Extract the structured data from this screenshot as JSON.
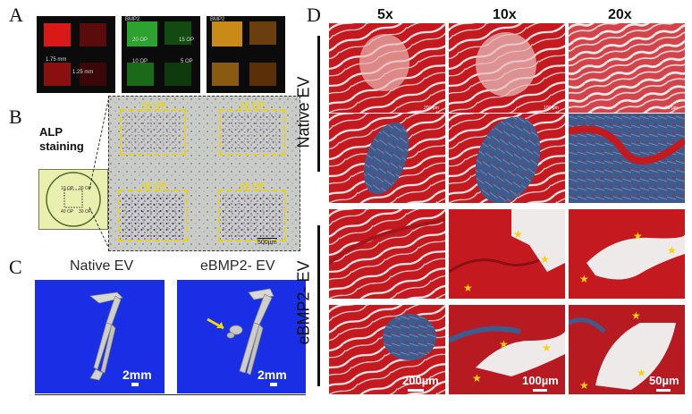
{
  "panels": {
    "a": {
      "letter": "A",
      "bmp2_1": "BMP2",
      "bmp2_2": "BMP2",
      "op20": "20 OP",
      "op15": "15 OP",
      "op10": "10 OP",
      "op5": "5 OP",
      "dim1": "1.75 mm",
      "dim2": "1.25 mm"
    },
    "b": {
      "letter": "B",
      "alp_line1": "ALP",
      "alp_line2": "staining",
      "op10": "10 OP",
      "op20": "20 OP",
      "op40": "40 OP",
      "op30": "30 OP",
      "scale": "500µm",
      "inset_op10": "10 OP",
      "inset_op20": "20 OP",
      "inset_op40": "40 OP",
      "inset_op30": "30 OP"
    },
    "c": {
      "letter": "C",
      "native_title": "Native EV",
      "ebmp2_title": "eBMP2- EV",
      "scale_left": "2mm",
      "scale_right": "2mm"
    },
    "d": {
      "letter": "D",
      "mag_5x": "5x",
      "mag_10x": "10x",
      "mag_20x": "20x",
      "native_label": "Native EV",
      "ebmp2_label": "eBMP2- EV",
      "sb_200": "200µm",
      "sb_100": "100µm",
      "sb_50": "50µm",
      "tiny_200": "200 µm",
      "tiny_100": "100 µm",
      "tiny_50": "50 µm"
    }
  },
  "colors": {
    "yellow_box": "#e6d21d",
    "ct_background": "#1a2ee6",
    "tissue_red": "#c41a1f",
    "collagen_blue": "#3f5a8c",
    "star": "#f5d10f"
  }
}
